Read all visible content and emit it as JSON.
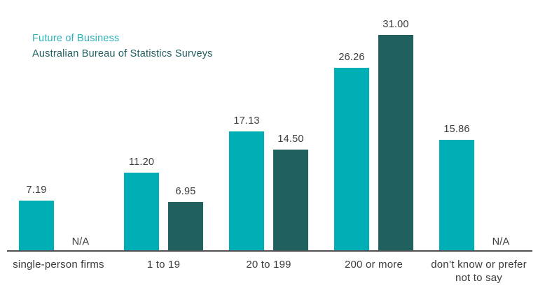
{
  "legend": {
    "series1": "Future of Business",
    "series2": "Australian Bureau of Statistics Surveys"
  },
  "colors": {
    "series1": "#00afb6",
    "series2": "#20605f",
    "series1_text": "#2bb1b9",
    "series2_text": "#1f5f5e",
    "axis": "#515151",
    "label": "#3b3b3b"
  },
  "chart_data": {
    "type": "bar",
    "title": "",
    "xlabel": "",
    "ylabel": "",
    "ylim": [
      0,
      31
    ],
    "grid": false,
    "legend_position": "top-left",
    "categories": [
      "single-person firms",
      "1 to 19",
      "20 to 199",
      "200 or more",
      "don’t know or prefer not to say"
    ],
    "categories_display": [
      "single-person firms",
      "1 to 19",
      "20 to 199",
      "200 or more",
      "don’t know or prefer\nnot to say"
    ],
    "series": [
      {
        "name": "Future of Business",
        "values": [
          7.19,
          11.2,
          17.13,
          26.26,
          15.86
        ]
      },
      {
        "name": "Australian Bureau of Statistics Surveys",
        "values": [
          null,
          6.95,
          14.5,
          31.0,
          null
        ]
      }
    ],
    "value_labels": [
      [
        "7.19",
        "11.20",
        "17.13",
        "26.26",
        "15.86"
      ],
      [
        "N/A",
        "6.95",
        "14.50",
        "31.00",
        "N/A"
      ]
    ]
  }
}
